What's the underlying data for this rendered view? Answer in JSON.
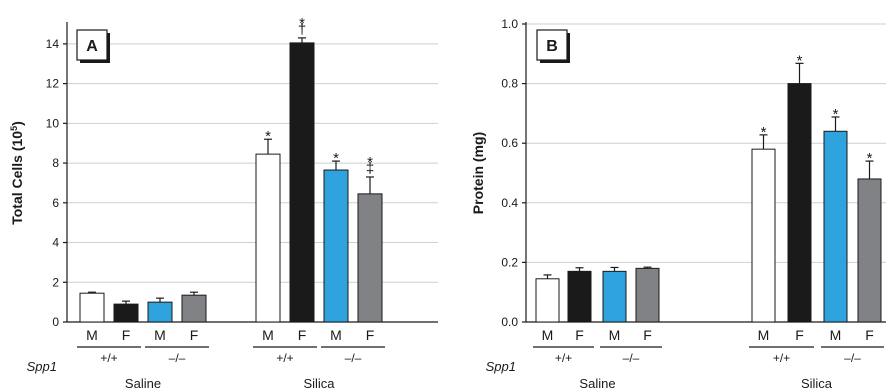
{
  "chart_data": [
    {
      "type": "bar",
      "panel_label": "A",
      "ylabel": "Total Cells (10",
      "ylabel_sup": "5",
      "ylabel_close": ")",
      "ylim": [
        0,
        15
      ],
      "yticks": [
        0,
        2,
        4,
        6,
        8,
        10,
        12,
        14
      ],
      "ytick_labels": [
        "0",
        "2",
        "4",
        "6",
        "8",
        "10",
        "12",
        "14"
      ],
      "grid": true,
      "categories": [
        "M",
        "F",
        "M",
        "F",
        "M",
        "F",
        "M",
        "F"
      ],
      "values": [
        1.45,
        0.9,
        1.0,
        1.35,
        8.45,
        14.05,
        7.65,
        6.45
      ],
      "errors": [
        0.05,
        0.15,
        0.2,
        0.15,
        0.75,
        0.25,
        0.45,
        0.85
      ],
      "bar_colors": [
        "#ffffff",
        "#1a1a1a",
        "#2ea3de",
        "#808285",
        "#ffffff",
        "#1a1a1a",
        "#2ea3de",
        "#808285"
      ],
      "markers": [
        "",
        "",
        "",
        "",
        "*",
        "*\n†",
        "*",
        "*\n‡"
      ]
    },
    {
      "type": "bar",
      "panel_label": "B",
      "ylabel": "Protein (mg)",
      "ylabel_sup": "",
      "ylabel_close": "",
      "ylim": [
        0,
        1.0
      ],
      "yticks": [
        0,
        0.2,
        0.4,
        0.6,
        0.8,
        1.0
      ],
      "ytick_labels": [
        "0.0",
        "0.2",
        "0.4",
        "0.6",
        "0.8",
        "1.0"
      ],
      "grid": true,
      "categories": [
        "M",
        "F",
        "M",
        "F",
        "M",
        "F",
        "M",
        "F"
      ],
      "values": [
        0.145,
        0.17,
        0.17,
        0.18,
        0.58,
        0.8,
        0.64,
        0.48
      ],
      "errors": [
        0.013,
        0.012,
        0.013,
        0.004,
        0.048,
        0.068,
        0.048,
        0.06
      ],
      "bar_colors": [
        "#ffffff",
        "#1a1a1a",
        "#2ea3de",
        "#808285",
        "#ffffff",
        "#1a1a1a",
        "#2ea3de",
        "#808285"
      ],
      "markers": [
        "",
        "",
        "",
        "",
        "*",
        "*",
        "*",
        "*"
      ]
    }
  ],
  "x_groups": {
    "genotype_label": "Spp1",
    "genotypes": [
      "+/+",
      "–/–",
      "+/+",
      "–/–"
    ],
    "treatments": [
      "Saline",
      "Silica"
    ]
  }
}
